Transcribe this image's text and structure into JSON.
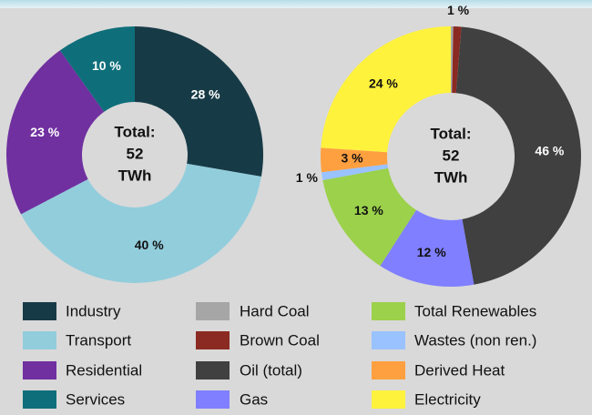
{
  "chart_data": [
    {
      "type": "pie",
      "donut": true,
      "categories": [
        "Industry",
        "Transport",
        "Residential",
        "Services"
      ],
      "values": [
        28,
        40,
        23,
        10
      ],
      "value_labels": [
        "28 %",
        "40 %",
        "23 %",
        "10 %"
      ],
      "colors": [
        "#173b46",
        "#92cddc",
        "#7030a0",
        "#0e6f7a"
      ],
      "center_label": "Total:",
      "total": 52,
      "total_unit": "TWh"
    },
    {
      "type": "pie",
      "donut": true,
      "categories": [
        "Hard Coal",
        "Brown Coal",
        "Oil (total)",
        "Gas",
        "Total Renewables",
        "Wastes (non ren.)",
        "Derived Heat",
        "Electricity"
      ],
      "values": [
        0.3,
        1,
        46,
        12,
        13,
        1,
        3,
        24
      ],
      "value_labels": [
        null,
        "1 %",
        "46 %",
        "12 %",
        "13 %",
        "1 %",
        "3 %",
        "24 %"
      ],
      "colors": [
        "#a6a6a6",
        "#8b2a22",
        "#404040",
        "#7f7fff",
        "#9bd14b",
        "#99c2ff",
        "#ffa040",
        "#fff23d"
      ],
      "center_label": "Total:",
      "total": 52,
      "total_unit": "TWh"
    }
  ]
}
